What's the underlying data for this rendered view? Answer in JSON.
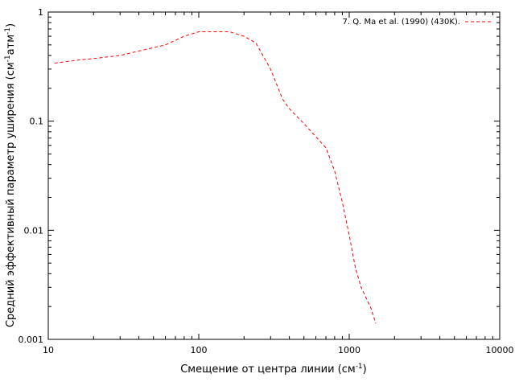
{
  "chart_data": {
    "type": "line",
    "x_scale": "log",
    "y_scale": "log",
    "xlim": [
      10,
      10000
    ],
    "ylim": [
      0.001,
      1
    ],
    "xticks": [
      10,
      100,
      1000,
      10000
    ],
    "xtick_labels": [
      "10",
      "100",
      "1000",
      "10000"
    ],
    "yticks": [
      0.001,
      0.01,
      0.1,
      1
    ],
    "ytick_labels": [
      "0.001",
      "0.01",
      "0.1",
      "1"
    ],
    "xlabel": "Смещение от центра линии (см",
    "xlabel_sup": "-1",
    "xlabel_end": ")",
    "ylabel": "Средний эффективный параметр уширения (см",
    "ylabel_sup1": "-1",
    "ylabel_mid": "атм",
    "ylabel_sup2": "-1",
    "ylabel_end": ")",
    "grid": false,
    "legend_position": "top-right",
    "series": [
      {
        "name": "7. Q. Ma et al. (1990) (430K).",
        "color": "#ff0000",
        "style": "dashed",
        "x": [
          11,
          15,
          20,
          30,
          40,
          60,
          80,
          100,
          130,
          160,
          200,
          240,
          300,
          360,
          400,
          500,
          700,
          800,
          900,
          1000,
          1100,
          1200,
          1400,
          1500
        ],
        "y": [
          0.34,
          0.36,
          0.375,
          0.4,
          0.44,
          0.5,
          0.6,
          0.66,
          0.66,
          0.66,
          0.6,
          0.52,
          0.3,
          0.16,
          0.13,
          0.095,
          0.057,
          0.035,
          0.018,
          0.009,
          0.0045,
          0.003,
          0.0019,
          0.0014
        ]
      }
    ]
  }
}
